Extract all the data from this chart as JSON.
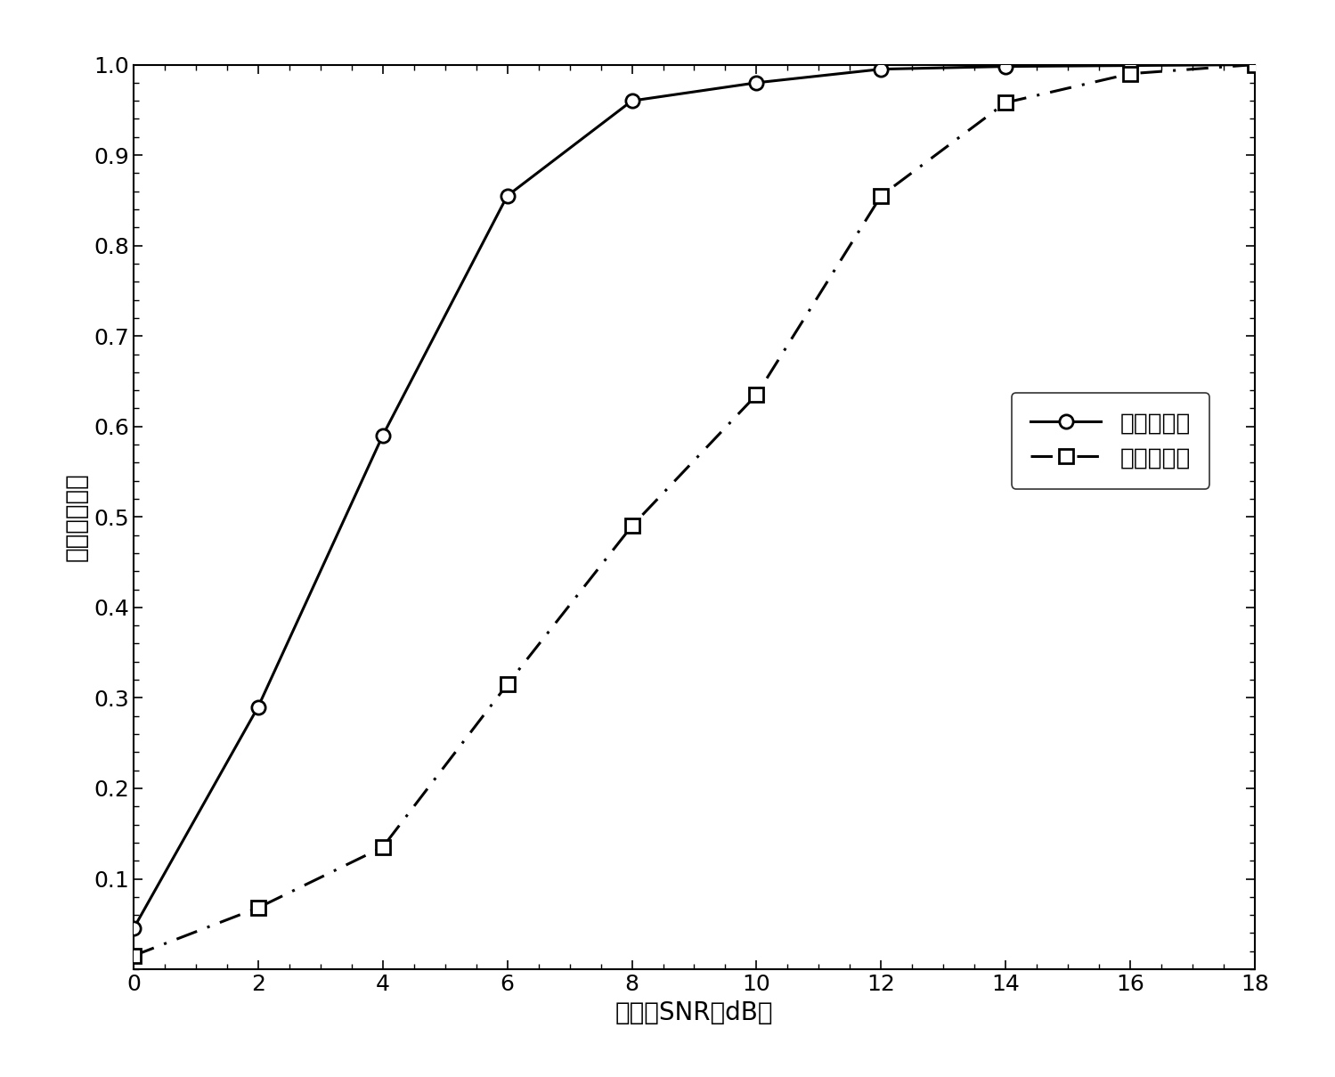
{
  "series1_x": [
    0,
    2,
    4,
    6,
    8,
    10,
    12,
    14,
    16,
    18
  ],
  "series1_y": [
    0.045,
    0.29,
    0.59,
    0.855,
    0.96,
    0.98,
    0.995,
    0.998,
    0.999,
    1.0
  ],
  "series2_x": [
    0,
    2,
    4,
    6,
    8,
    10,
    12,
    14,
    16,
    18
  ],
  "series2_y": [
    0.015,
    0.068,
    0.135,
    0.315,
    0.49,
    0.635,
    0.855,
    0.958,
    0.99,
    1.0
  ],
  "series1_label": "本发明方法",
  "series2_label": "单支路方法",
  "xlabel": "信噪比SNR（dB）",
  "ylabel": "正确检测概率",
  "xlim": [
    0,
    18
  ],
  "ylim": [
    0,
    1.0
  ],
  "xticks": [
    0,
    2,
    4,
    6,
    8,
    10,
    12,
    14,
    16,
    18
  ],
  "yticks": [
    0.1,
    0.2,
    0.3,
    0.4,
    0.5,
    0.6,
    0.7,
    0.8,
    0.9,
    1.0
  ],
  "line1_color": "#000000",
  "line2_color": "#000000",
  "line1_style": "-",
  "line2_style": "-.",
  "line1_marker": "o",
  "line2_marker": "s",
  "line_width": 2.2,
  "marker_size": 11,
  "tick_font_size": 18,
  "label_font_size": 20,
  "legend_font_size": 19
}
